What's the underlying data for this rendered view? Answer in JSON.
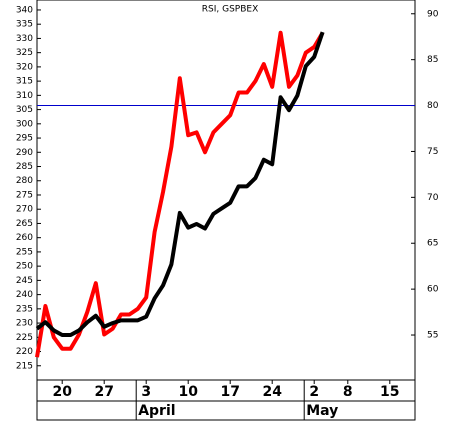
{
  "chart_data": {
    "type": "line",
    "title": "RSI, GSPBEX",
    "categories": [
      null,
      null,
      null,
      "20",
      null,
      null,
      null,
      null,
      "27",
      null,
      null,
      null,
      null,
      "3",
      null,
      null,
      null,
      null,
      "10",
      null,
      null,
      null,
      null,
      "17",
      null,
      null,
      null,
      null,
      "24",
      null,
      null,
      null,
      null,
      "2",
      null,
      null,
      null,
      "8",
      null,
      null,
      null,
      null,
      "15",
      null,
      null,
      null
    ],
    "month_labels": [
      "April",
      "May"
    ],
    "series": [
      {
        "name": "GSPBEX",
        "color": "#ff0000",
        "values": [
          218,
          236,
          225,
          221,
          221,
          226,
          234,
          244,
          226,
          228,
          233,
          233,
          235,
          239,
          262,
          276,
          292,
          316,
          296,
          297,
          290,
          297,
          300,
          303,
          311,
          311,
          315,
          321,
          313,
          332,
          313,
          317,
          325,
          327,
          332,
          null,
          null,
          null,
          null,
          null,
          null,
          null,
          null,
          null,
          null,
          null
        ]
      },
      {
        "name": "RSI",
        "color": "#000000",
        "axis": "y2",
        "values": [
          55.7,
          56.4,
          55.5,
          55,
          55,
          55.5,
          56.4,
          57.1,
          55.9,
          56.3,
          56.6,
          56.6,
          56.6,
          57,
          59,
          60.4,
          62.7,
          68.3,
          66.7,
          67.1,
          66.6,
          68.2,
          68.8,
          69.4,
          71.2,
          71.2,
          72.1,
          74.1,
          73.6,
          80.9,
          79.5,
          81.1,
          84.3,
          85.3,
          88,
          null,
          null,
          null,
          null,
          null,
          null,
          null,
          null,
          null,
          null,
          null
        ]
      }
    ],
    "reference_line": {
      "value": 80,
      "axis": "y2",
      "color": "#0000cc"
    },
    "ylim": [
      210,
      343.5
    ],
    "yticks": [
      215,
      220,
      225,
      230,
      235,
      240,
      245,
      250,
      255,
      260,
      265,
      270,
      275,
      280,
      285,
      290,
      295,
      300,
      305,
      310,
      315,
      320,
      325,
      330,
      335,
      340
    ],
    "y2lim": [
      50.1,
      91.5
    ],
    "y2ticks": [
      55,
      60,
      65,
      70,
      75,
      80,
      85,
      90
    ]
  }
}
